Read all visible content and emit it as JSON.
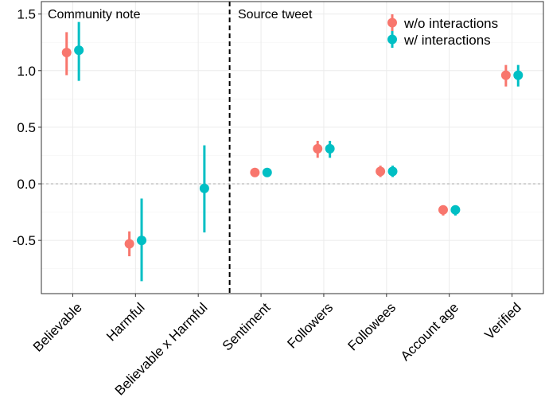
{
  "chart_data": {
    "type": "scatter",
    "subtype": "coefficient-plot-with-error-bars",
    "categories": [
      "Believable",
      "Harmful",
      "Believable x Harmful",
      "Sentiment",
      "Followers",
      "Followees",
      "Account age",
      "Verified"
    ],
    "panels": [
      {
        "label": "Community note",
        "categories": [
          "Believable",
          "Harmful",
          "Believable x Harmful"
        ]
      },
      {
        "label": "Source tweet",
        "categories": [
          "Sentiment",
          "Followers",
          "Followees",
          "Account age",
          "Verified"
        ]
      }
    ],
    "series": [
      {
        "name": "w/o interactions",
        "color": "#F8766D",
        "points": [
          {
            "category": "Believable",
            "estimate": 1.16,
            "lower": 0.96,
            "upper": 1.34
          },
          {
            "category": "Harmful",
            "estimate": -0.53,
            "lower": -0.64,
            "upper": -0.42
          },
          {
            "category": "Sentiment",
            "estimate": 0.1,
            "lower": 0.08,
            "upper": 0.12
          },
          {
            "category": "Followers",
            "estimate": 0.31,
            "lower": 0.23,
            "upper": 0.38
          },
          {
            "category": "Followees",
            "estimate": 0.11,
            "lower": 0.06,
            "upper": 0.16
          },
          {
            "category": "Account age",
            "estimate": -0.23,
            "lower": -0.28,
            "upper": -0.19
          },
          {
            "category": "Verified",
            "estimate": 0.96,
            "lower": 0.86,
            "upper": 1.05
          }
        ]
      },
      {
        "name": "w/ interactions",
        "color": "#00BFC4",
        "points": [
          {
            "category": "Believable",
            "estimate": 1.18,
            "lower": 0.91,
            "upper": 1.43
          },
          {
            "category": "Harmful",
            "estimate": -0.5,
            "lower": -0.86,
            "upper": -0.13
          },
          {
            "category": "Believable x Harmful",
            "estimate": -0.04,
            "lower": -0.43,
            "upper": 0.34
          },
          {
            "category": "Sentiment",
            "estimate": 0.1,
            "lower": 0.08,
            "upper": 0.12
          },
          {
            "category": "Followers",
            "estimate": 0.31,
            "lower": 0.23,
            "upper": 0.38
          },
          {
            "category": "Followees",
            "estimate": 0.11,
            "lower": 0.06,
            "upper": 0.16
          },
          {
            "category": "Account age",
            "estimate": -0.23,
            "lower": -0.28,
            "upper": -0.19
          },
          {
            "category": "Verified",
            "estimate": 0.96,
            "lower": 0.86,
            "upper": 1.05
          }
        ]
      }
    ],
    "ylim": [
      -0.97,
      1.61
    ],
    "yticks": [
      -0.5,
      0.0,
      0.5,
      1.0,
      1.5
    ],
    "ytick_labels": [
      "-0.5",
      "0.0",
      "0.5",
      "1.0",
      "1.5"
    ],
    "reference_line": {
      "y": 0,
      "style": "dashed",
      "color": "#aaaaaa"
    },
    "panel_separator": {
      "between": [
        "Believable x Harmful",
        "Sentiment"
      ],
      "style": "dashed",
      "color": "#000000"
    },
    "legend_position": "top-right",
    "grid": true,
    "title": "",
    "xlabel": "",
    "ylabel": ""
  }
}
